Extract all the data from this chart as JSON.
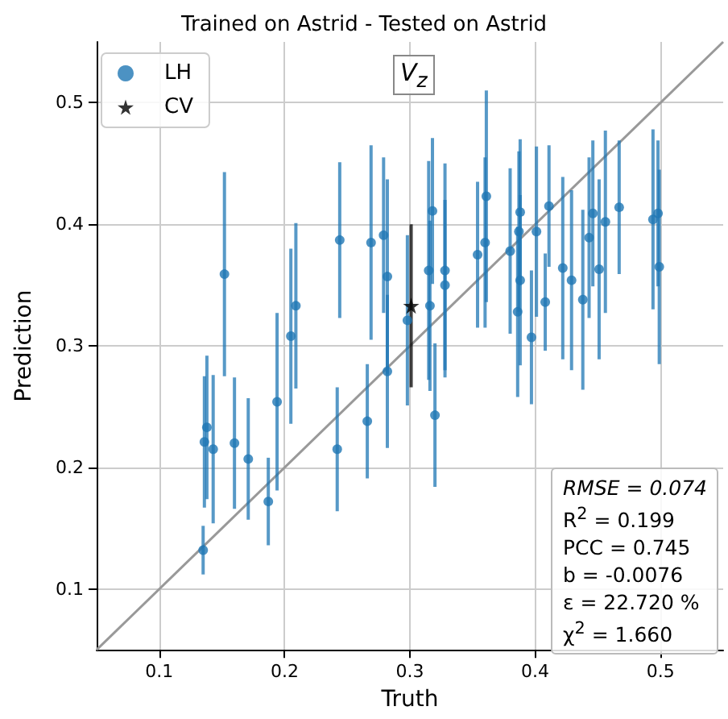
{
  "chart_data": {
    "type": "scatter",
    "title": "Trained on Astrid - Tested on Astrid",
    "xlabel": "Truth",
    "ylabel": "Prediction",
    "xlim": [
      0.05,
      0.55
    ],
    "ylim": [
      0.05,
      0.55
    ],
    "xticks": [
      0.1,
      0.2,
      0.3,
      0.4,
      0.5
    ],
    "yticks": [
      0.1,
      0.2,
      0.3,
      0.4,
      0.5
    ],
    "grid": true,
    "legend": "top left",
    "annotations": [
      "V$_{z}$",
      "RMSE = 0.074",
      "R$^{2}$ = 0.199",
      "PCC = 0.745",
      "b = -0.0076",
      "ε = 22.720 %",
      "χ$^{2}$ = 1.660"
    ],
    "series": [
      {
        "name": "LH",
        "color": "#1f77b4",
        "marker": "circle",
        "x": [
          0.135,
          0.136,
          0.138,
          0.143,
          0.152,
          0.16,
          0.171,
          0.187,
          0.194,
          0.205,
          0.209,
          0.242,
          0.244,
          0.266,
          0.269,
          0.279,
          0.282,
          0.282,
          0.298,
          0.315,
          0.316,
          0.318,
          0.32,
          0.328,
          0.328,
          0.354,
          0.36,
          0.361,
          0.38,
          0.386,
          0.387,
          0.388,
          0.388,
          0.397,
          0.401,
          0.408,
          0.411,
          0.422,
          0.429,
          0.438,
          0.443,
          0.446,
          0.451,
          0.456,
          0.467,
          0.494,
          0.498,
          0.499
        ],
        "values": [
          0.132,
          0.221,
          0.233,
          0.215,
          0.359,
          0.22,
          0.207,
          0.172,
          0.254,
          0.308,
          0.333,
          0.215,
          0.387,
          0.238,
          0.385,
          0.391,
          0.357,
          0.279,
          0.321,
          0.362,
          0.333,
          0.411,
          0.243,
          0.362,
          0.35,
          0.375,
          0.385,
          0.423,
          0.378,
          0.328,
          0.394,
          0.41,
          0.354,
          0.307,
          0.394,
          0.336,
          0.415,
          0.364,
          0.354,
          0.338,
          0.389,
          0.409,
          0.363,
          0.402,
          0.414,
          0.404,
          0.409,
          0.365
        ],
        "errors": [
          0.02,
          0.054,
          0.059,
          0.061,
          0.084,
          0.054,
          0.05,
          0.036,
          0.073,
          0.072,
          0.068,
          0.051,
          0.064,
          0.047,
          0.08,
          0.064,
          0.08,
          0.063,
          0.07,
          0.09,
          0.07,
          0.06,
          0.059,
          0.088,
          0.07,
          0.06,
          0.07,
          0.087,
          0.068,
          0.07,
          0.066,
          0.06,
          0.07,
          0.055,
          0.07,
          0.04,
          0.05,
          0.075,
          0.074,
          0.074,
          0.066,
          0.06,
          0.074,
          0.075,
          0.055,
          0.074,
          0.06,
          0.08
        ]
      },
      {
        "name": "CV",
        "color": "#000000",
        "marker": "star",
        "x": [
          0.301
        ],
        "values": [
          0.333
        ],
        "errors": [
          0.067
        ]
      },
      {
        "type": "line",
        "color": "#999999",
        "marker": "none",
        "line_style": "solid",
        "x": [
          0.05,
          0.55
        ],
        "values": [
          0.05,
          0.55
        ]
      }
    ]
  }
}
